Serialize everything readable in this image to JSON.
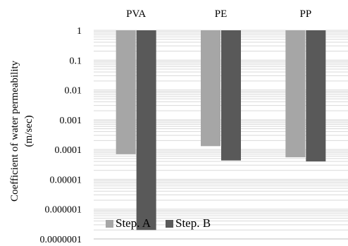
{
  "chart_data": {
    "type": "bar",
    "categories": [
      "PVA",
      "PE",
      "PP"
    ],
    "series": [
      {
        "name": "Step. A",
        "color": "#a6a6a6",
        "values": [
          7e-05,
          0.00013,
          5.5e-05
        ]
      },
      {
        "name": "Step. B",
        "color": "#595959",
        "values": [
          2e-07,
          4.3e-05,
          4e-05
        ]
      }
    ],
    "ylabel_line1": "Coefficient of water permeability",
    "ylabel_line2": "(m/sec)",
    "y_scale": "log",
    "ylim": [
      1e-07,
      1
    ],
    "y_ticks": [
      "1",
      "0.1",
      "0.01",
      "0.001",
      "0.0001",
      "0.00001",
      "0.000001",
      "0.0000001"
    ],
    "category_labels_position": "top",
    "grid": true,
    "legend_position": "bottom-left"
  }
}
